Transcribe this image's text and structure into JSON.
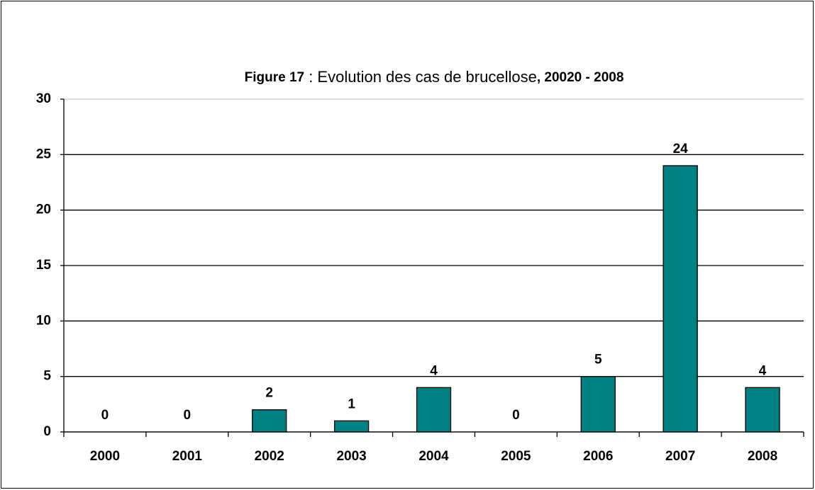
{
  "chart_data": {
    "type": "bar",
    "title": [
      "Figure 17",
      " : Evolution des cas de brucellose",
      ", 20020 - 2008"
    ],
    "categories": [
      "2000",
      "2001",
      "2002",
      "2003",
      "2004",
      "2005",
      "2006",
      "2007",
      "2008"
    ],
    "values": [
      0,
      0,
      2,
      1,
      4,
      0,
      5,
      24,
      4
    ],
    "color": "#008080",
    "ylim": [
      0,
      30
    ],
    "yticks": [
      0,
      5,
      10,
      15,
      20,
      25,
      30
    ],
    "grid": true
  }
}
